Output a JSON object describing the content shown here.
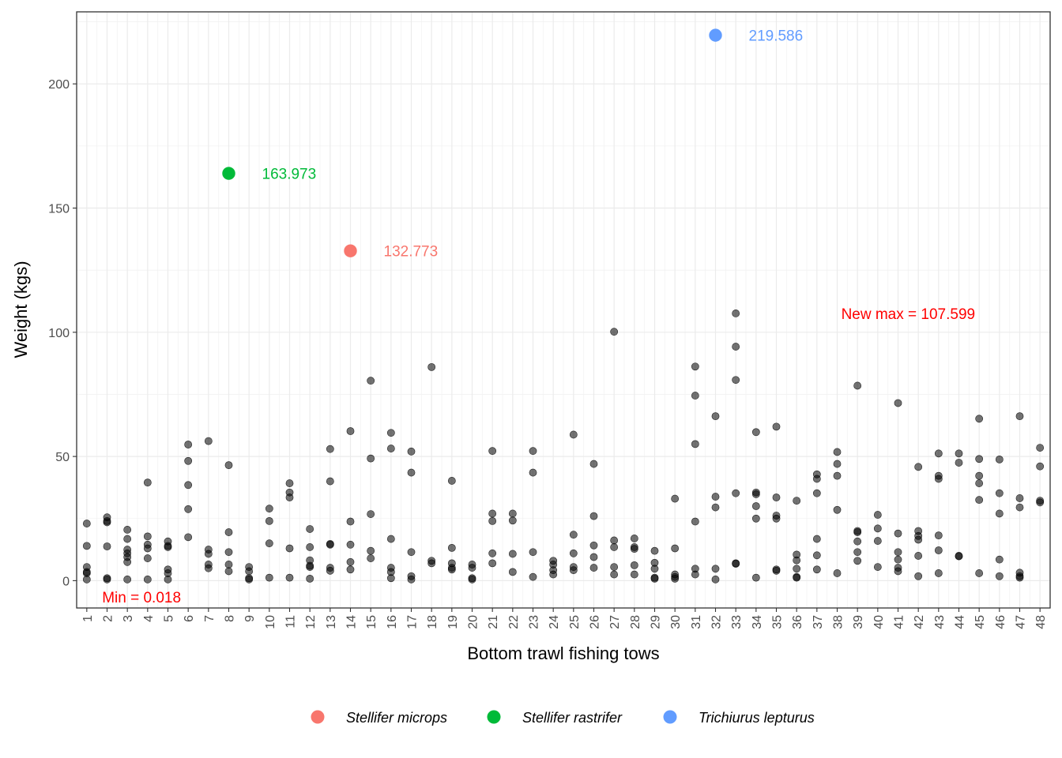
{
  "chart_data": {
    "type": "scatter",
    "xlabel": "Bottom trawl fishing tows",
    "ylabel": "Weight (kgs)",
    "xlim": [
      0.5,
      48.5
    ],
    "ylim": [
      -11,
      229
    ],
    "x_ticks": [
      1,
      2,
      3,
      4,
      5,
      6,
      7,
      8,
      9,
      10,
      11,
      12,
      13,
      14,
      15,
      16,
      17,
      18,
      19,
      20,
      21,
      22,
      23,
      24,
      25,
      26,
      27,
      28,
      29,
      30,
      31,
      32,
      33,
      34,
      35,
      36,
      37,
      38,
      39,
      40,
      41,
      42,
      43,
      44,
      45,
      46,
      47,
      48
    ],
    "y_ticks": [
      0,
      50,
      100,
      150,
      200
    ],
    "grid": true,
    "legend_position": "bottom",
    "point_color": "#000000",
    "highlight_series": [
      {
        "name": "Stellifer microps",
        "color": "#F8766D",
        "x": 14,
        "y": 132.773,
        "label": "132.773"
      },
      {
        "name": "Stellifer rastrifer",
        "color": "#00BA38",
        "x": 8,
        "y": 163.973,
        "label": "163.973"
      },
      {
        "name": "Trichiurus lepturus",
        "color": "#619CFF",
        "x": 32,
        "y": 219.586,
        "label": "219.586"
      }
    ],
    "annotations": [
      {
        "text": "Min = 0.018",
        "x": 3.7,
        "y": -6.5,
        "color": "#FF0000"
      },
      {
        "text": "New max = 107.599",
        "x": 41.5,
        "y": 107.599,
        "color": "#FF0000"
      }
    ],
    "points": [
      [
        1,
        23
      ],
      [
        1,
        14
      ],
      [
        1,
        5.5
      ],
      [
        1,
        3.5
      ],
      [
        1,
        3
      ],
      [
        1,
        0.5
      ],
      [
        2,
        25.5
      ],
      [
        2,
        24
      ],
      [
        2,
        23.5
      ],
      [
        2,
        13.8
      ],
      [
        2,
        1
      ],
      [
        2,
        0.5
      ],
      [
        3,
        20.5
      ],
      [
        3,
        16.8
      ],
      [
        3,
        12.5
      ],
      [
        3,
        11
      ],
      [
        3,
        9.5
      ],
      [
        3,
        7.5
      ],
      [
        3,
        0.5
      ],
      [
        4,
        39.5
      ],
      [
        4,
        17.8
      ],
      [
        4,
        14.5
      ],
      [
        4,
        13
      ],
      [
        4,
        9
      ],
      [
        4,
        0.5
      ],
      [
        5,
        15.8
      ],
      [
        5,
        14
      ],
      [
        5,
        13.5
      ],
      [
        5,
        4.5
      ],
      [
        5,
        3
      ],
      [
        5,
        0.5
      ],
      [
        6,
        54.8
      ],
      [
        6,
        48.2
      ],
      [
        6,
        38.5
      ],
      [
        6,
        28.8
      ],
      [
        6,
        17.5
      ],
      [
        7,
        56.2
      ],
      [
        7,
        12.5
      ],
      [
        7,
        10.8
      ],
      [
        7,
        6.5
      ],
      [
        7,
        5
      ],
      [
        8,
        46.5
      ],
      [
        8,
        19.5
      ],
      [
        8,
        11.5
      ],
      [
        8,
        6.5
      ],
      [
        8,
        3.8
      ],
      [
        9,
        5.5
      ],
      [
        9,
        3.8
      ],
      [
        9,
        1
      ],
      [
        9,
        0.5
      ],
      [
        10,
        29
      ],
      [
        10,
        24
      ],
      [
        10,
        15
      ],
      [
        10,
        1.2
      ],
      [
        11,
        39.2
      ],
      [
        11,
        35.5
      ],
      [
        11,
        33.5
      ],
      [
        11,
        13
      ],
      [
        11,
        1.2
      ],
      [
        12,
        20.8
      ],
      [
        12,
        13.5
      ],
      [
        12,
        8.2
      ],
      [
        12,
        6
      ],
      [
        12,
        5.5
      ],
      [
        12,
        0.8
      ],
      [
        13,
        53
      ],
      [
        13,
        40
      ],
      [
        13,
        14.8
      ],
      [
        13,
        14.5
      ],
      [
        13,
        5.2
      ],
      [
        13,
        4
      ],
      [
        14,
        60.2
      ],
      [
        14,
        23.8
      ],
      [
        14,
        14.5
      ],
      [
        14,
        7.5
      ],
      [
        14,
        4.5
      ],
      [
        15,
        80.5
      ],
      [
        15,
        49.2
      ],
      [
        15,
        26.8
      ],
      [
        15,
        12
      ],
      [
        15,
        9
      ],
      [
        16,
        59.5
      ],
      [
        16,
        53.2
      ],
      [
        16,
        16.8
      ],
      [
        16,
        5.2
      ],
      [
        16,
        3.5
      ],
      [
        16,
        1
      ],
      [
        17,
        52
      ],
      [
        17,
        43.5
      ],
      [
        17,
        11.5
      ],
      [
        17,
        1.8
      ],
      [
        17,
        0.5
      ],
      [
        18,
        86
      ],
      [
        18,
        8
      ],
      [
        18,
        7
      ],
      [
        19,
        40.2
      ],
      [
        19,
        13.2
      ],
      [
        19,
        7
      ],
      [
        19,
        5.2
      ],
      [
        19,
        4.5
      ],
      [
        20,
        6.5
      ],
      [
        20,
        5.2
      ],
      [
        20,
        1
      ],
      [
        20,
        0.5
      ],
      [
        21,
        52.2
      ],
      [
        21,
        27
      ],
      [
        21,
        24
      ],
      [
        21,
        11
      ],
      [
        21,
        7
      ],
      [
        22,
        27
      ],
      [
        22,
        24.2
      ],
      [
        22,
        10.8
      ],
      [
        22,
        3.5
      ],
      [
        23,
        52.2
      ],
      [
        23,
        43.5
      ],
      [
        23,
        11.5
      ],
      [
        23,
        1.5
      ],
      [
        24,
        8
      ],
      [
        24,
        6.5
      ],
      [
        24,
        4.2
      ],
      [
        24,
        2.5
      ],
      [
        25,
        58.8
      ],
      [
        25,
        18.5
      ],
      [
        25,
        11
      ],
      [
        25,
        5.5
      ],
      [
        25,
        4.2
      ],
      [
        26,
        47
      ],
      [
        26,
        26
      ],
      [
        26,
        14.2
      ],
      [
        26,
        9.5
      ],
      [
        26,
        5.2
      ],
      [
        27,
        100.2
      ],
      [
        27,
        16.2
      ],
      [
        27,
        13.5
      ],
      [
        27,
        5.5
      ],
      [
        27,
        2.5
      ],
      [
        28,
        17
      ],
      [
        28,
        13.5
      ],
      [
        28,
        12.8
      ],
      [
        28,
        6.2
      ],
      [
        28,
        2.5
      ],
      [
        29,
        12
      ],
      [
        29,
        7.2
      ],
      [
        29,
        4.8
      ],
      [
        29,
        1.2
      ],
      [
        29,
        0.8
      ],
      [
        30,
        33
      ],
      [
        30,
        13
      ],
      [
        30,
        2.5
      ],
      [
        30,
        1.5
      ],
      [
        30,
        0.8
      ],
      [
        31,
        86.2
      ],
      [
        31,
        74.5
      ],
      [
        31,
        55
      ],
      [
        31,
        23.8
      ],
      [
        31,
        4.8
      ],
      [
        31,
        2.5
      ],
      [
        32,
        66.2
      ],
      [
        32,
        33.8
      ],
      [
        32,
        29.5
      ],
      [
        32,
        4.8
      ],
      [
        32,
        0.5
      ],
      [
        33,
        107.599
      ],
      [
        33,
        94.2
      ],
      [
        33,
        80.8
      ],
      [
        33,
        35.2
      ],
      [
        33,
        7
      ],
      [
        33,
        6.8
      ],
      [
        34,
        59.8
      ],
      [
        34,
        35.5
      ],
      [
        34,
        34.8
      ],
      [
        34,
        30
      ],
      [
        34,
        25
      ],
      [
        34,
        1.2
      ],
      [
        35,
        62
      ],
      [
        35,
        33.5
      ],
      [
        35,
        26.2
      ],
      [
        35,
        25
      ],
      [
        35,
        4.5
      ],
      [
        35,
        4
      ],
      [
        36,
        32.2
      ],
      [
        36,
        10.5
      ],
      [
        36,
        8.2
      ],
      [
        36,
        4.8
      ],
      [
        36,
        1.5
      ],
      [
        36,
        1.2
      ],
      [
        37,
        42.8
      ],
      [
        37,
        41
      ],
      [
        37,
        35.2
      ],
      [
        37,
        16.8
      ],
      [
        37,
        10.2
      ],
      [
        37,
        4.5
      ],
      [
        38,
        51.8
      ],
      [
        38,
        47
      ],
      [
        38,
        42.2
      ],
      [
        38,
        28.5
      ],
      [
        38,
        3
      ],
      [
        39,
        78.5
      ],
      [
        39,
        20
      ],
      [
        39,
        19.5
      ],
      [
        39,
        15.8
      ],
      [
        39,
        11.5
      ],
      [
        39,
        8
      ],
      [
        40,
        26.5
      ],
      [
        40,
        21
      ],
      [
        40,
        16
      ],
      [
        40,
        5.5
      ],
      [
        41,
        71.5
      ],
      [
        41,
        19
      ],
      [
        41,
        11.5
      ],
      [
        41,
        8.5
      ],
      [
        41,
        5.2
      ],
      [
        41,
        3.8
      ],
      [
        42,
        45.8
      ],
      [
        42,
        20
      ],
      [
        42,
        18
      ],
      [
        42,
        16.5
      ],
      [
        42,
        10
      ],
      [
        42,
        1.8
      ],
      [
        43,
        51.2
      ],
      [
        43,
        42.2
      ],
      [
        43,
        41
      ],
      [
        43,
        18.2
      ],
      [
        43,
        12.2
      ],
      [
        43,
        3
      ],
      [
        44,
        51.2
      ],
      [
        44,
        47.5
      ],
      [
        44,
        10
      ],
      [
        44,
        9.8
      ],
      [
        45,
        65.2
      ],
      [
        45,
        49
      ],
      [
        45,
        42.2
      ],
      [
        45,
        39.2
      ],
      [
        45,
        32.5
      ],
      [
        45,
        3
      ],
      [
        46,
        48.8
      ],
      [
        46,
        35.2
      ],
      [
        46,
        27
      ],
      [
        46,
        8.5
      ],
      [
        46,
        1.8
      ],
      [
        47,
        66.2
      ],
      [
        47,
        33.2
      ],
      [
        47,
        29.5
      ],
      [
        47,
        3.2
      ],
      [
        47,
        1.8
      ],
      [
        47,
        1.2
      ],
      [
        48,
        53.5
      ],
      [
        48,
        46
      ],
      [
        48,
        32.2
      ],
      [
        48,
        31.5
      ]
    ]
  }
}
